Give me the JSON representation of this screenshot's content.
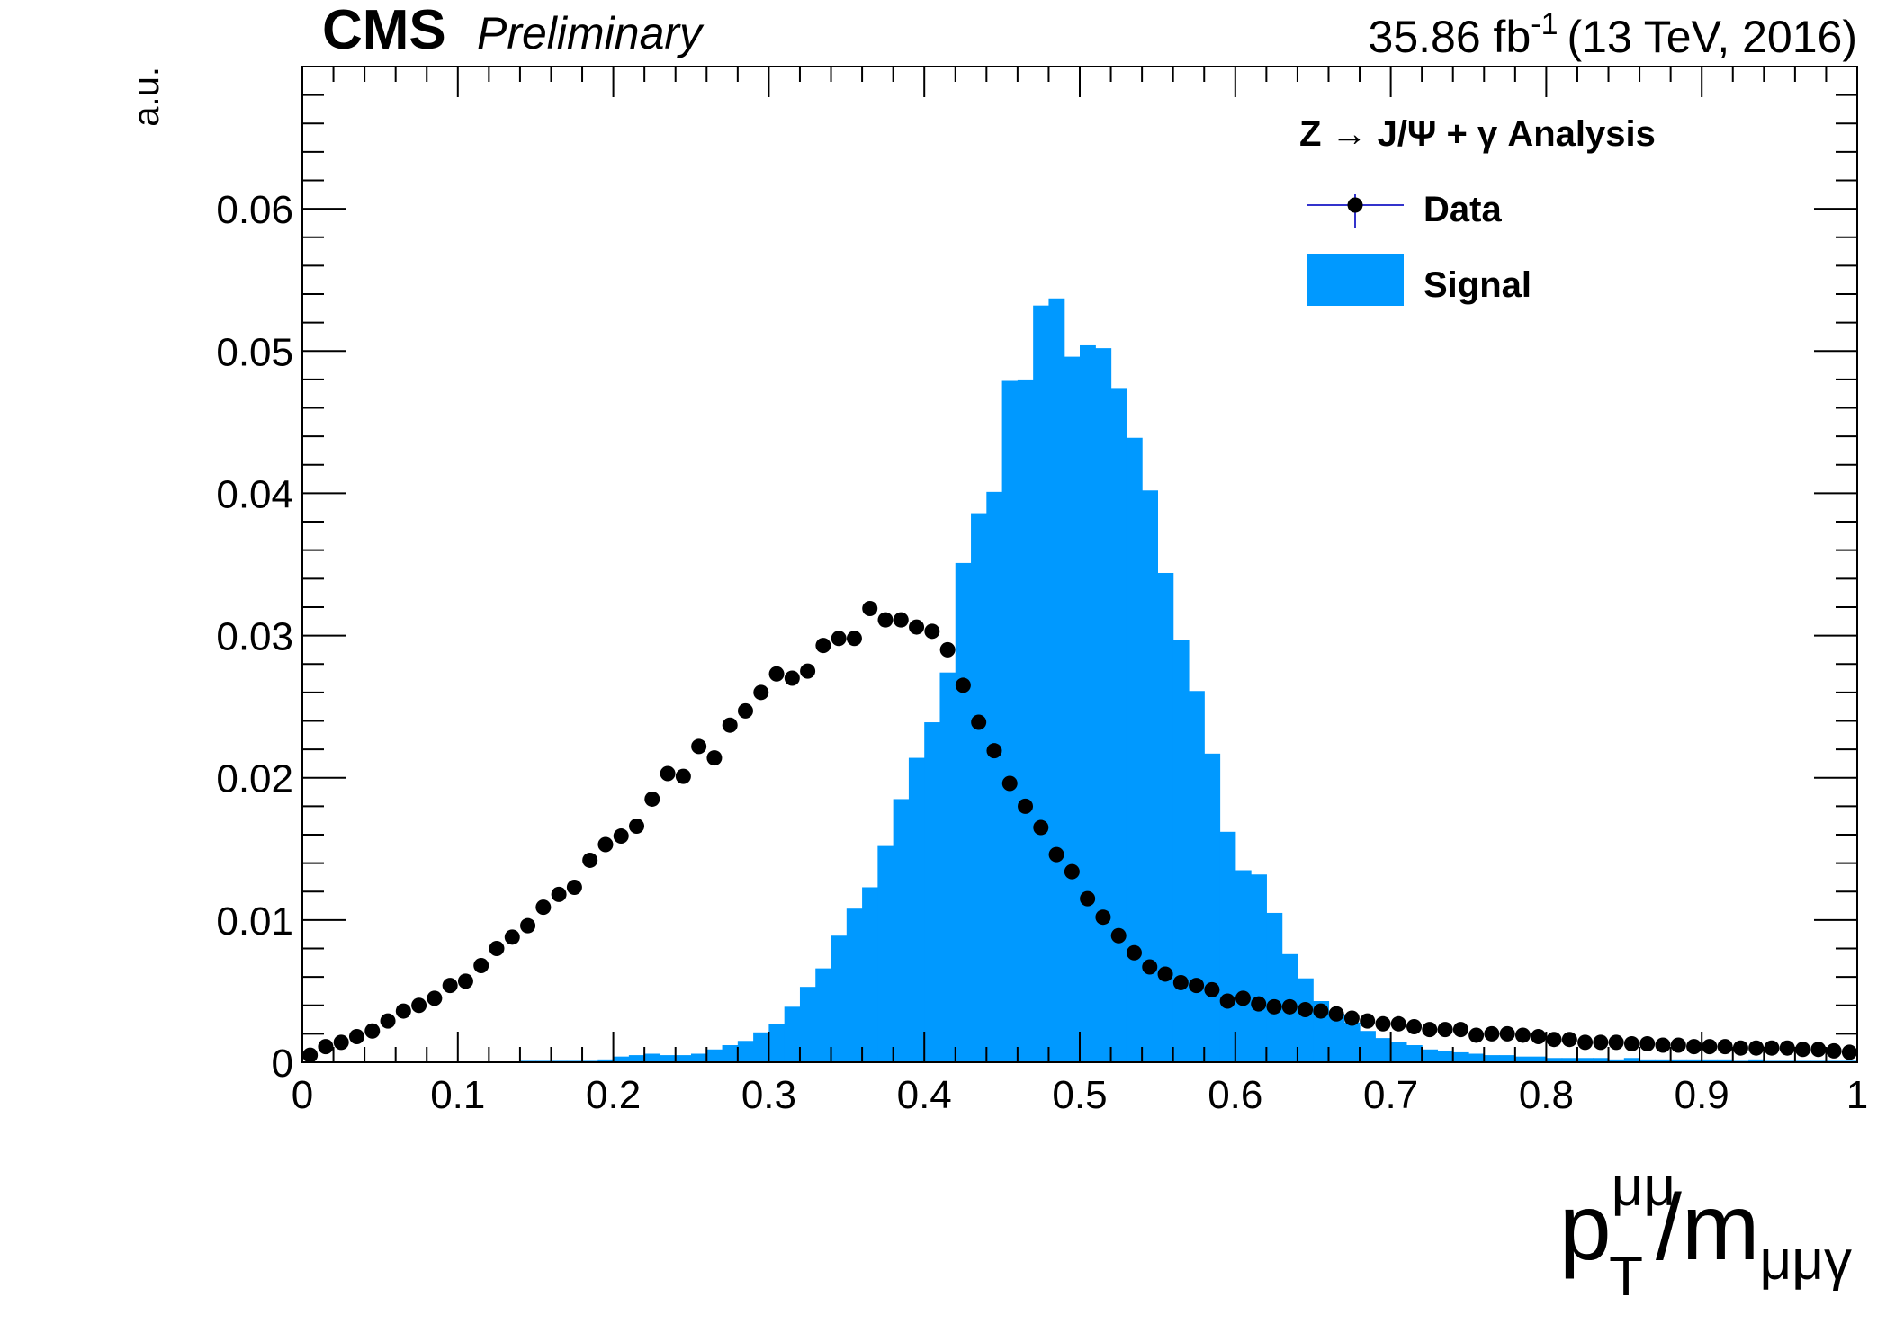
{
  "header": {
    "experiment": "CMS",
    "status": "Preliminary",
    "lumi_value": "35.86 fb",
    "lumi_exponent": "-1",
    "energy": "(13 TeV, 2016)"
  },
  "legend": {
    "title": "Z → J/Ψ + γ Analysis",
    "entries": [
      "Data",
      "Signal"
    ]
  },
  "axes": {
    "ylabel": "a.u.",
    "xlabel": {
      "base": "p",
      "sup": "μμ",
      "sub": "T",
      "slash": "/m",
      "sub2": "μμγ"
    }
  },
  "colors": {
    "signal": "#0099ff",
    "data": "#000000",
    "data_legend_line": "#3333cc"
  },
  "chart_data": {
    "type": "bar",
    "xlim": [
      0,
      1
    ],
    "ylim": [
      0,
      0.07
    ],
    "bin_width": 0.01,
    "x_ticks": [
      0,
      0.1,
      0.2,
      0.3,
      0.4,
      0.5,
      0.6,
      0.7,
      0.8,
      0.9,
      1
    ],
    "x_tick_labels": [
      "0",
      "0.1",
      "0.2",
      "0.3",
      "0.4",
      "0.5",
      "0.6",
      "0.7",
      "0.8",
      "0.9",
      "1"
    ],
    "y_ticks": [
      0,
      0.01,
      0.02,
      0.03,
      0.04,
      0.05,
      0.06
    ],
    "y_tick_labels": [
      "0",
      "0.01",
      "0.02",
      "0.03",
      "0.04",
      "0.05",
      "0.06"
    ],
    "legend_position": "top-right",
    "series": [
      {
        "name": "Signal",
        "kind": "histogram",
        "values": [
          0,
          0,
          0,
          0,
          0,
          0,
          0,
          0,
          0,
          0,
          0,
          0,
          0,
          0,
          0.0001,
          0.0001,
          0.0001,
          0.0001,
          0.0001,
          0.0002,
          0.0004,
          0.0005,
          0.0006,
          0.0005,
          0.0005,
          0.0006,
          0.0009,
          0.0012,
          0.0015,
          0.0021,
          0.0027,
          0.0039,
          0.0053,
          0.0066,
          0.0089,
          0.0108,
          0.0123,
          0.0152,
          0.0185,
          0.0214,
          0.0239,
          0.0274,
          0.0351,
          0.0386,
          0.0401,
          0.0479,
          0.048,
          0.0532,
          0.0537,
          0.0496,
          0.0504,
          0.0502,
          0.0474,
          0.0439,
          0.0402,
          0.0344,
          0.0297,
          0.0261,
          0.0217,
          0.0162,
          0.0135,
          0.0132,
          0.0105,
          0.0076,
          0.0059,
          0.0043,
          0.0034,
          0.0028,
          0.0022,
          0.0017,
          0.0014,
          0.0012,
          0.0009,
          0.0008,
          0.0007,
          0.0006,
          0.0005,
          0.0005,
          0.0004,
          0.0004,
          0.0003,
          0.0003,
          0.0003,
          0.0003,
          0.0002,
          0.0003,
          0.0002,
          0.0002,
          0.0002,
          0.0002,
          0.0002,
          0.0002,
          0.0001,
          0.0002,
          0.0001,
          0.0001,
          0.0001,
          0.0001,
          0.0001,
          0.0001
        ]
      },
      {
        "name": "Data",
        "kind": "points",
        "values": [
          0.0005,
          0.0011,
          0.0014,
          0.0018,
          0.0022,
          0.0029,
          0.0036,
          0.004,
          0.0045,
          0.0054,
          0.0057,
          0.0068,
          0.008,
          0.0088,
          0.0096,
          0.0109,
          0.0118,
          0.0123,
          0.0142,
          0.0153,
          0.0159,
          0.0166,
          0.0185,
          0.0203,
          0.0201,
          0.0222,
          0.0214,
          0.0237,
          0.0247,
          0.026,
          0.0273,
          0.027,
          0.0275,
          0.0293,
          0.0298,
          0.0298,
          0.0319,
          0.0311,
          0.0311,
          0.0306,
          0.0303,
          0.029,
          0.0265,
          0.0239,
          0.0219,
          0.0196,
          0.018,
          0.0165,
          0.0146,
          0.0134,
          0.0115,
          0.0102,
          0.0089,
          0.0077,
          0.0067,
          0.0062,
          0.0056,
          0.0054,
          0.0051,
          0.0043,
          0.0045,
          0.0041,
          0.0039,
          0.0039,
          0.0037,
          0.0036,
          0.0034,
          0.0031,
          0.0029,
          0.0027,
          0.0027,
          0.0025,
          0.0023,
          0.0023,
          0.0023,
          0.0019,
          0.002,
          0.002,
          0.0019,
          0.0018,
          0.0016,
          0.0016,
          0.0014,
          0.0014,
          0.0014,
          0.0013,
          0.0013,
          0.0012,
          0.0012,
          0.0011,
          0.0011,
          0.0011,
          0.001,
          0.001,
          0.001,
          0.001,
          0.0009,
          0.0009,
          0.0008,
          0.0007
        ]
      }
    ]
  }
}
